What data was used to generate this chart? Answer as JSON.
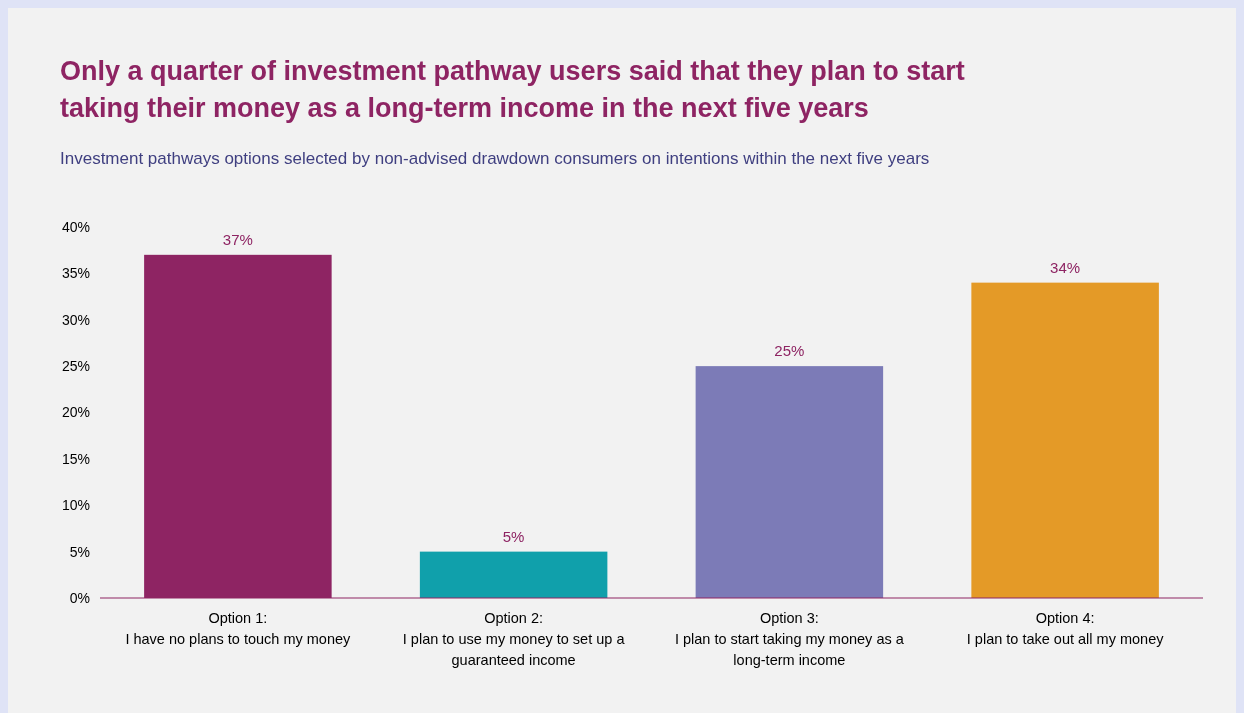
{
  "chart_data": {
    "type": "bar",
    "title": "Only a quarter of investment pathway users said that they plan to start taking their money as a long-term income in the next five years",
    "subtitle": "Investment pathways options selected by non-advised drawdown consumers on intentions within the next five years",
    "categories": [
      "Option 1:\nI have no plans to touch my money",
      "Option 2:\nI plan to use my money to set up a\nguaranteed income",
      "Option 3:\nI plan to start taking my money as a\nlong-term income",
      "Option 4:\nI plan to take out all my money"
    ],
    "values": [
      37,
      5,
      25,
      34
    ],
    "colors": [
      "#8e2463",
      "#10a0ab",
      "#7c7bb7",
      "#e49a27"
    ],
    "value_labels": [
      "37%",
      "5%",
      "25%",
      "34%"
    ],
    "ylim": [
      0,
      40
    ],
    "yticks": [
      {
        "value": 0,
        "label": "0%"
      },
      {
        "value": 5,
        "label": "5%"
      },
      {
        "value": 10,
        "label": "10%"
      },
      {
        "value": 15,
        "label": "15%"
      },
      {
        "value": 20,
        "label": "20%"
      },
      {
        "value": 25,
        "label": "25%"
      },
      {
        "value": 30,
        "label": "30%"
      },
      {
        "value": 35,
        "label": "35%"
      },
      {
        "value": 40,
        "label": "40%"
      }
    ],
    "grid": false
  }
}
